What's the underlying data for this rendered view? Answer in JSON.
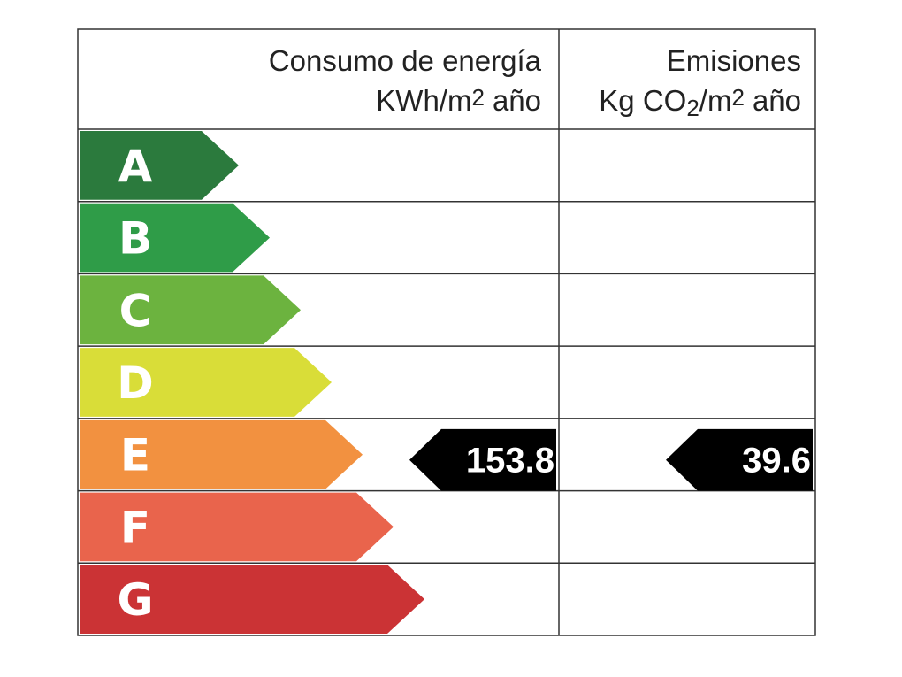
{
  "header": {
    "energy": {
      "title": "Consumo de energía",
      "unit": [
        "KWh/m",
        "2",
        "año"
      ]
    },
    "emissions": {
      "title": "Emisiones",
      "unit": [
        "Kg CO",
        "2",
        "/m",
        "2",
        "año"
      ]
    }
  },
  "ratings": [
    {
      "letter": "A",
      "color": "#2b7a3d"
    },
    {
      "letter": "B",
      "color": "#2f9c48"
    },
    {
      "letter": "C",
      "color": "#6cb33f"
    },
    {
      "letter": "D",
      "color": "#d9dd38"
    },
    {
      "letter": "E",
      "color": "#f29140"
    },
    {
      "letter": "F",
      "color": "#e9644c"
    },
    {
      "letter": "G",
      "color": "#cb3335"
    }
  ],
  "energy": {
    "value": 153.8,
    "rating": "E"
  },
  "emissions": {
    "value": 39.6,
    "rating": "E"
  }
}
